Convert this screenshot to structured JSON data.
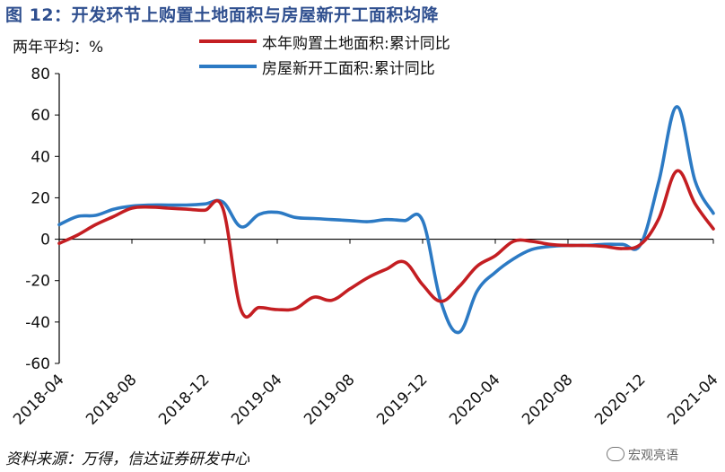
{
  "figure_title": "图 12：开发环节上购置土地面积与房屋新开工面积均降",
  "unit_label": "两年平均：%",
  "source": "资料来源：万得，信达证券研发中心",
  "watermark": "宏观亮语",
  "colors": {
    "title": "#2f4f8f",
    "series1": "#c41e22",
    "series2": "#2c7ac4"
  },
  "chart_data": {
    "type": "line",
    "ylim": [
      -60,
      80
    ],
    "yticks": [
      80,
      60,
      40,
      20,
      0,
      -20,
      -40,
      -60
    ],
    "x_tick_labels": [
      "2018-04",
      "2018-08",
      "2018-12",
      "2019-04",
      "2019-08",
      "2019-12",
      "2020-04",
      "2020-08",
      "2020-12",
      "2021-04"
    ],
    "x": [
      "2018-04",
      "2018-05",
      "2018-06",
      "2018-07",
      "2018-08",
      "2018-09",
      "2018-10",
      "2018-11",
      "2018-12",
      "2019-01",
      "2019-02",
      "2019-03",
      "2019-04",
      "2019-05",
      "2019-06",
      "2019-07",
      "2019-08",
      "2019-09",
      "2019-10",
      "2019-11",
      "2019-12",
      "2020-01",
      "2020-02",
      "2020-03",
      "2020-04",
      "2020-05",
      "2020-06",
      "2020-07",
      "2020-08",
      "2020-09",
      "2020-10",
      "2020-11",
      "2020-12",
      "2021-01",
      "2021-02",
      "2021-03",
      "2021-04"
    ],
    "series": [
      {
        "name": "本年购置土地面积:累计同比",
        "values": [
          -2,
          2,
          7,
          11,
          15,
          15.5,
          15,
          14.5,
          14,
          15,
          -34,
          -33,
          -34,
          -33.5,
          -28,
          -29.5,
          -24,
          -18.5,
          -14.5,
          -11,
          -22,
          -30,
          -23,
          -13,
          -8,
          -1,
          -1,
          -2.5,
          -3,
          -3,
          -3.5,
          -4.5,
          -2.5,
          10,
          33,
          17,
          5
        ]
      },
      {
        "name": "房屋新开工面积:累计同比",
        "values": [
          7,
          11,
          11.5,
          14.5,
          16,
          16.5,
          16.5,
          16.5,
          17,
          18,
          6,
          12,
          13,
          10.5,
          10,
          9.5,
          9,
          8.5,
          9.5,
          9,
          9,
          -30,
          -45,
          -25,
          -16,
          -9.5,
          -5,
          -3.5,
          -3,
          -3,
          -2.5,
          -2.5,
          -2.5,
          28,
          64,
          28,
          12.5
        ]
      }
    ]
  }
}
